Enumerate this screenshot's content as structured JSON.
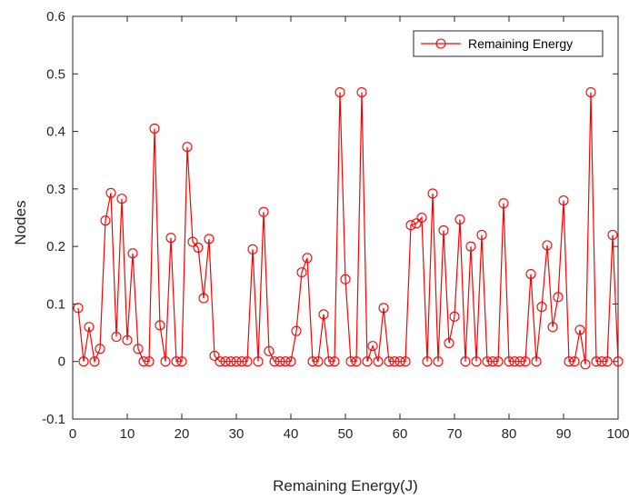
{
  "chart_data": {
    "type": "line",
    "title": "",
    "xlabel": "Remaining Energy(J)",
    "ylabel": "Nodes",
    "xlim": [
      0,
      100
    ],
    "ylim": [
      -0.1,
      0.6
    ],
    "xticks": [
      "0",
      "10",
      "20",
      "30",
      "40",
      "50",
      "60",
      "70",
      "80",
      "90",
      "100"
    ],
    "yticks": [
      "-0.1",
      "0",
      "0.1",
      "0.2",
      "0.3",
      "0.4",
      "0.5",
      "0.6"
    ],
    "xtick_values": [
      0,
      10,
      20,
      30,
      40,
      50,
      60,
      70,
      80,
      90,
      100
    ],
    "ytick_values": [
      -0.1,
      0,
      0.1,
      0.2,
      0.3,
      0.4,
      0.5,
      0.6
    ],
    "grid": false,
    "legend_position": "top-right",
    "series": [
      {
        "name": "Remaining Energy",
        "color": "#ff0000",
        "marker": "circle",
        "x": [
          1,
          2,
          3,
          4,
          5,
          6,
          7,
          8,
          9,
          10,
          11,
          12,
          13,
          14,
          15,
          16,
          17,
          18,
          19,
          20,
          21,
          22,
          23,
          24,
          25,
          26,
          27,
          28,
          29,
          30,
          31,
          32,
          33,
          34,
          35,
          36,
          37,
          38,
          39,
          40,
          41,
          42,
          43,
          44,
          45,
          46,
          47,
          48,
          49,
          50,
          51,
          52,
          53,
          54,
          55,
          56,
          57,
          58,
          59,
          60,
          61,
          62,
          63,
          64,
          65,
          66,
          67,
          68,
          69,
          70,
          71,
          72,
          73,
          74,
          75,
          76,
          77,
          78,
          79,
          80,
          81,
          82,
          83,
          84,
          85,
          86,
          87,
          88,
          89,
          90,
          91,
          92,
          93,
          94,
          95,
          96,
          97,
          98,
          99,
          100
        ],
        "values": [
          0.093,
          0.0,
          0.06,
          0.0,
          0.022,
          0.245,
          0.293,
          0.043,
          0.283,
          0.037,
          0.188,
          0.022,
          0.0,
          0.0,
          0.405,
          0.063,
          0.0,
          0.215,
          0.0,
          0.0,
          0.373,
          0.208,
          0.198,
          0.11,
          0.213,
          0.01,
          0.0,
          0.0,
          0.0,
          0.0,
          0.0,
          0.0,
          0.195,
          0.0,
          0.26,
          0.018,
          0.0,
          0.0,
          0.0,
          0.0,
          0.053,
          0.155,
          0.18,
          0.0,
          0.0,
          0.082,
          0.0,
          0.0,
          0.468,
          0.143,
          0.0,
          0.0,
          0.468,
          0.0,
          0.027,
          0.0,
          0.093,
          0.0,
          0.0,
          0.0,
          0.0,
          0.237,
          0.24,
          0.25,
          0.0,
          0.292,
          0.0,
          0.228,
          0.032,
          0.078,
          0.247,
          0.0,
          0.2,
          0.0,
          0.22,
          0.0,
          0.0,
          0.0,
          0.275,
          0.0,
          0.0,
          0.0,
          0.0,
          0.152,
          0.0,
          0.095,
          0.202,
          0.06,
          0.112,
          0.28,
          0.0,
          0.0,
          0.055,
          -0.005,
          0.468,
          0.0,
          0.0,
          0.0,
          0.22,
          0.0
        ]
      }
    ]
  }
}
